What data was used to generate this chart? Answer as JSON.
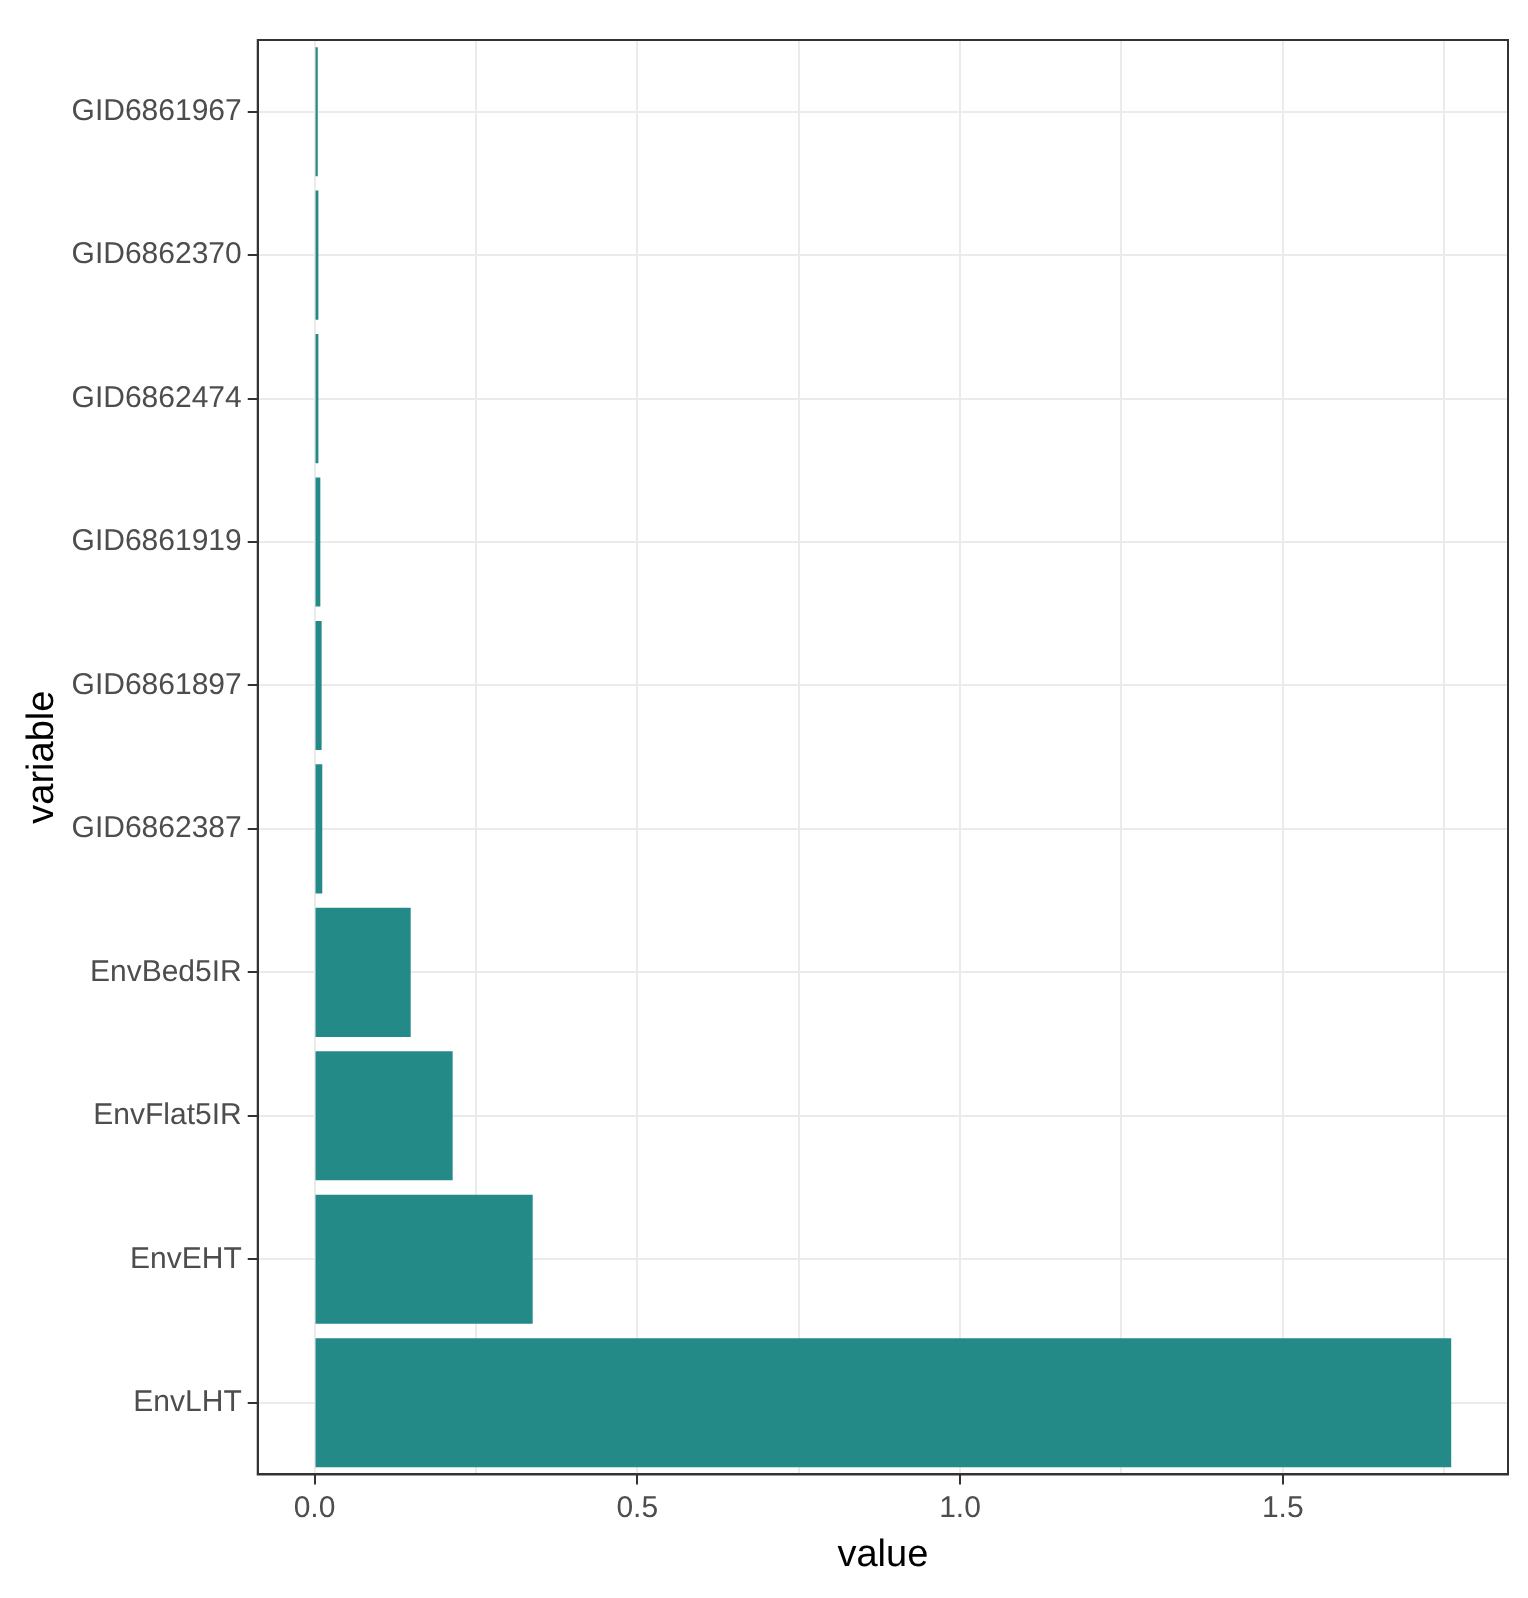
{
  "chart_data": {
    "type": "bar",
    "orientation": "horizontal",
    "xlabel": "value",
    "ylabel": "variable",
    "categories": [
      "GID6861967",
      "GID6862370",
      "GID6862474",
      "GID6861919",
      "GID6861897",
      "GID6862387",
      "EnvBed5IR",
      "EnvFlat5IR",
      "EnvEHT",
      "EnvLHT"
    ],
    "values": [
      0.005,
      0.006,
      0.006,
      0.009,
      0.011,
      0.012,
      0.149,
      0.214,
      0.338,
      1.761
    ],
    "color": "#248a88",
    "xlim": [
      -0.088,
      1.849
    ],
    "xticks": [
      {
        "value": 0,
        "label": "0.0"
      },
      {
        "value": 0.25,
        "label": null
      },
      0.5,
      {
        "value": 0.75,
        "label": null
      },
      {
        "value": 1,
        "label": "1.0"
      },
      {
        "value": 1.25,
        "label": null
      },
      1.5,
      {
        "value": 1.75,
        "label": null
      }
    ],
    "grid": true,
    "legend": false
  }
}
